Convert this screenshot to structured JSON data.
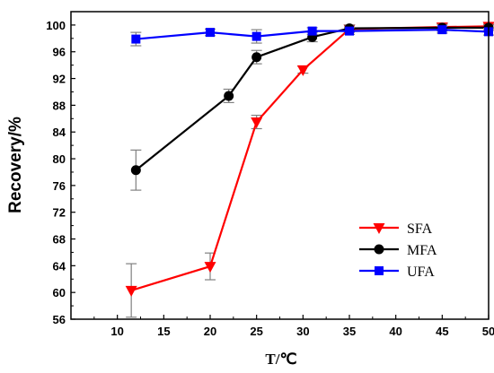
{
  "chart_data": {
    "type": "line",
    "xlabel": "T/℃",
    "ylabel": "Recovery/%",
    "xlim": [
      5,
      50
    ],
    "ylim": [
      56,
      102
    ],
    "x_ticks": [
      10,
      15,
      20,
      25,
      30,
      35,
      40,
      45,
      50
    ],
    "y_ticks": [
      56,
      60,
      64,
      68,
      72,
      76,
      80,
      84,
      88,
      92,
      96,
      100
    ],
    "x_tick_labels": [
      "10",
      "15",
      "20",
      "25",
      "30",
      "35",
      "40",
      "45",
      "50"
    ],
    "y_tick_labels": [
      "56",
      "60",
      "64",
      "68",
      "72",
      "76",
      "80",
      "84",
      "88",
      "92",
      "96",
      "100"
    ],
    "legend_position": "center-right",
    "series": [
      {
        "name": "SFA",
        "color": "#ff0000",
        "marker": "triangle-down",
        "points": [
          {
            "x": 11.5,
            "y": 60.3,
            "err": 4.0
          },
          {
            "x": 20,
            "y": 63.9,
            "err": 2.0
          },
          {
            "x": 25,
            "y": 85.5,
            "err": 1.0
          },
          {
            "x": 30,
            "y": 93.3,
            "err": 0.5
          },
          {
            "x": 35,
            "y": 99.4,
            "err": 0.5
          },
          {
            "x": 45,
            "y": 99.7,
            "err": 0.5
          },
          {
            "x": 50,
            "y": 99.8,
            "err": 0.3
          }
        ]
      },
      {
        "name": "MFA",
        "color": "#000000",
        "marker": "circle",
        "points": [
          {
            "x": 12,
            "y": 78.3,
            "err": 3.0
          },
          {
            "x": 22,
            "y": 89.4,
            "err": 1.0
          },
          {
            "x": 25,
            "y": 95.2,
            "err": 1.0
          },
          {
            "x": 31,
            "y": 98.2,
            "err": 0.7
          },
          {
            "x": 35,
            "y": 99.5,
            "err": 0.5
          },
          {
            "x": 45,
            "y": 99.6,
            "err": 0.5
          },
          {
            "x": 50,
            "y": 99.6,
            "err": 0.4
          }
        ]
      },
      {
        "name": "UFA",
        "color": "#0000ff",
        "marker": "square",
        "points": [
          {
            "x": 12,
            "y": 97.9,
            "err": 1.0
          },
          {
            "x": 20,
            "y": 98.9,
            "err": 0.5
          },
          {
            "x": 25,
            "y": 98.3,
            "err": 1.0
          },
          {
            "x": 31,
            "y": 99.1,
            "err": 0.5
          },
          {
            "x": 35,
            "y": 99.1,
            "err": 0.5
          },
          {
            "x": 45,
            "y": 99.3,
            "err": 0.5
          },
          {
            "x": 50,
            "y": 99.0,
            "err": 0.5
          }
        ]
      }
    ]
  }
}
